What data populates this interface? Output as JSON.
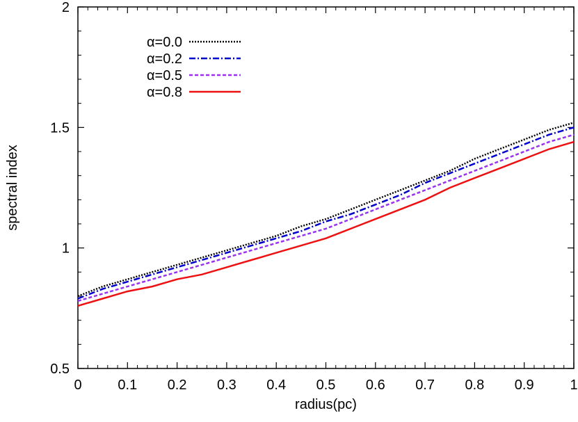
{
  "chart_data": {
    "type": "line",
    "title": "",
    "xlabel": "radius(pc)",
    "ylabel": "spectral index",
    "xlim": [
      0,
      1
    ],
    "ylim": [
      0.5,
      2
    ],
    "xticks": [
      "0",
      "0.1",
      "0.2",
      "0.3",
      "0.4",
      "0.5",
      "0.6",
      "0.7",
      "0.8",
      "0.9",
      "1"
    ],
    "yticks": [
      "0.5",
      "1",
      "1.5",
      "2"
    ],
    "grid": false,
    "legend_position": "top-left",
    "x": [
      0,
      0.05,
      0.1,
      0.15,
      0.2,
      0.25,
      0.3,
      0.35,
      0.4,
      0.45,
      0.5,
      0.55,
      0.6,
      0.65,
      0.7,
      0.75,
      0.8,
      0.85,
      0.9,
      0.95,
      1.0
    ],
    "series": [
      {
        "name": "α=0.0",
        "color": "#000000",
        "dash": "dotted",
        "values": [
          0.8,
          0.84,
          0.87,
          0.9,
          0.93,
          0.96,
          0.99,
          1.02,
          1.05,
          1.09,
          1.12,
          1.16,
          1.2,
          1.24,
          1.28,
          1.32,
          1.37,
          1.41,
          1.45,
          1.49,
          1.52
        ]
      },
      {
        "name": "α=0.2",
        "color": "#0000cc",
        "dash": "dashdot",
        "values": [
          0.79,
          0.83,
          0.86,
          0.89,
          0.92,
          0.95,
          0.98,
          1.01,
          1.04,
          1.07,
          1.11,
          1.14,
          1.18,
          1.22,
          1.27,
          1.31,
          1.35,
          1.39,
          1.43,
          1.47,
          1.5
        ]
      },
      {
        "name": "α=0.5",
        "color": "#9933ee",
        "dash": "dashed",
        "values": [
          0.78,
          0.81,
          0.84,
          0.87,
          0.9,
          0.93,
          0.96,
          0.99,
          1.02,
          1.05,
          1.08,
          1.12,
          1.16,
          1.2,
          1.24,
          1.28,
          1.32,
          1.36,
          1.4,
          1.44,
          1.47
        ]
      },
      {
        "name": "α=0.8",
        "color": "#ee1111",
        "dash": "solid",
        "values": [
          0.76,
          0.79,
          0.82,
          0.84,
          0.87,
          0.89,
          0.92,
          0.95,
          0.98,
          1.01,
          1.04,
          1.08,
          1.12,
          1.16,
          1.2,
          1.25,
          1.29,
          1.33,
          1.37,
          1.41,
          1.44
        ]
      }
    ]
  }
}
